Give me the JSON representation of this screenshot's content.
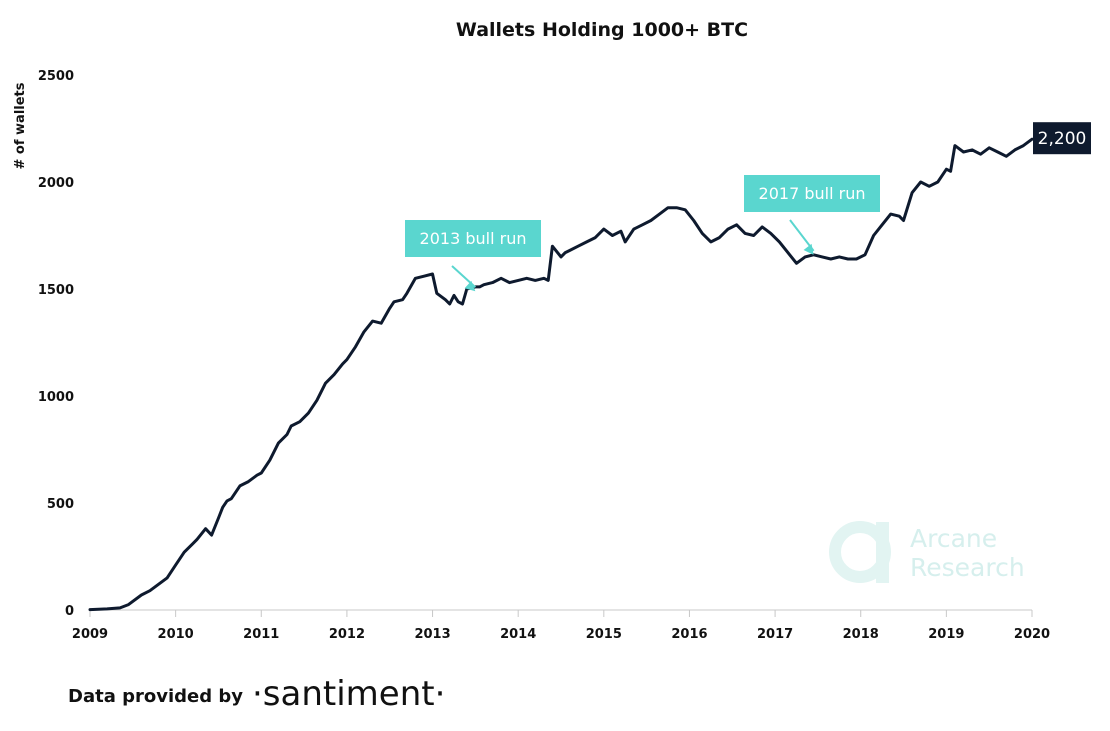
{
  "chart_data": {
    "type": "line",
    "title": "Wallets Holding 1000+ BTC",
    "ylabel": "# of wallets",
    "xlabel": "",
    "xlim": [
      2009,
      2020
    ],
    "ylim": [
      0,
      2500
    ],
    "x_ticks": [
      "2009",
      "2010",
      "2011",
      "2012",
      "2013",
      "2014",
      "2015",
      "2016",
      "2017",
      "2018",
      "2019",
      "2020"
    ],
    "y_ticks": [
      "0",
      "500",
      "1000",
      "1500",
      "2000",
      "2500"
    ],
    "grid": false,
    "series": [
      {
        "color": "#0e1a2e",
        "x": [
          2009.0,
          2009.2,
          2009.35,
          2009.45,
          2009.6,
          2009.7,
          2009.8,
          2009.9,
          2010.0,
          2010.1,
          2010.2,
          2010.25,
          2010.35,
          2010.42,
          2010.5,
          2010.55,
          2010.6,
          2010.65,
          2010.75,
          2010.85,
          2010.95,
          2011.0,
          2011.1,
          2011.2,
          2011.3,
          2011.35,
          2011.45,
          2011.55,
          2011.65,
          2011.75,
          2011.85,
          2011.95,
          2012.0,
          2012.1,
          2012.2,
          2012.3,
          2012.4,
          2012.5,
          2012.55,
          2012.65,
          2012.7,
          2012.8,
          2012.9,
          2013.0,
          2013.05,
          2013.15,
          2013.2,
          2013.25,
          2013.3,
          2013.35,
          2013.4,
          2013.5,
          2013.55,
          2013.6,
          2013.7,
          2013.8,
          2013.9,
          2014.0,
          2014.1,
          2014.2,
          2014.3,
          2014.35,
          2014.4,
          2014.5,
          2014.55,
          2014.6,
          2014.7,
          2014.8,
          2014.9,
          2015.0,
          2015.1,
          2015.2,
          2015.25,
          2015.35,
          2015.45,
          2015.55,
          2015.65,
          2015.75,
          2015.85,
          2015.95,
          2016.05,
          2016.15,
          2016.25,
          2016.35,
          2016.45,
          2016.55,
          2016.65,
          2016.75,
          2016.85,
          2016.95,
          2017.05,
          2017.15,
          2017.25,
          2017.35,
          2017.45,
          2017.55,
          2017.65,
          2017.75,
          2017.85,
          2017.95,
          2018.05,
          2018.15,
          2018.25,
          2018.35,
          2018.45,
          2018.5,
          2018.6,
          2018.7,
          2018.8,
          2018.9,
          2019.0,
          2019.05,
          2019.1,
          2019.2,
          2019.3,
          2019.4,
          2019.5,
          2019.6,
          2019.7,
          2019.8,
          2019.9,
          2020.0
        ],
        "y": [
          2,
          5,
          10,
          25,
          70,
          90,
          120,
          150,
          210,
          270,
          310,
          330,
          380,
          350,
          430,
          480,
          510,
          520,
          580,
          600,
          630,
          640,
          700,
          780,
          820,
          860,
          880,
          920,
          980,
          1060,
          1100,
          1150,
          1170,
          1230,
          1300,
          1350,
          1340,
          1410,
          1440,
          1450,
          1480,
          1550,
          1560,
          1570,
          1480,
          1450,
          1430,
          1470,
          1440,
          1430,
          1500,
          1510,
          1510,
          1520,
          1530,
          1550,
          1530,
          1540,
          1550,
          1540,
          1550,
          1540,
          1700,
          1650,
          1670,
          1680,
          1700,
          1720,
          1740,
          1780,
          1750,
          1770,
          1720,
          1780,
          1800,
          1820,
          1850,
          1880,
          1880,
          1870,
          1820,
          1760,
          1720,
          1740,
          1780,
          1800,
          1760,
          1750,
          1790,
          1760,
          1720,
          1670,
          1620,
          1650,
          1660,
          1650,
          1640,
          1650,
          1640,
          1640,
          1660,
          1750,
          1800,
          1850,
          1840,
          1820,
          1950,
          2000,
          1980,
          2000,
          2060,
          2050,
          2170,
          2140,
          2150,
          2130,
          2160,
          2140,
          2120,
          2150,
          2170,
          2200
        ]
      }
    ],
    "annotations": [
      {
        "text": "2013 bull run",
        "box_color": "#5ad6cf",
        "arrow_to": [
          2013.5,
          1480
        ]
      },
      {
        "text": "2017 bull run",
        "box_color": "#5ad6cf",
        "arrow_to": [
          2017.45,
          1650
        ]
      }
    ],
    "end_label": {
      "text": "2,200",
      "value": 2200,
      "background": "#0e1a2e"
    }
  },
  "watermark": {
    "line1": "Arcane",
    "line2": "Research",
    "color": "#d6efed"
  },
  "footer": {
    "credit": "Data provided by",
    "brand": "·santiment·"
  }
}
